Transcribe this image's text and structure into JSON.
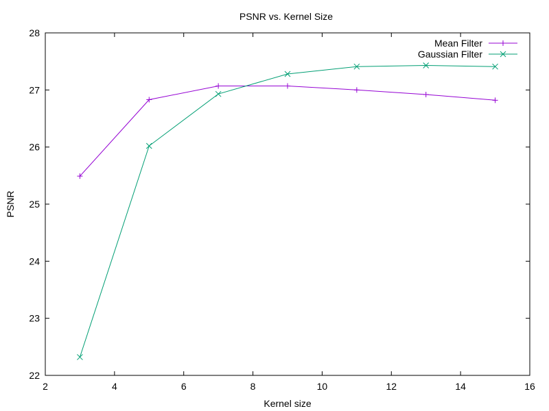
{
  "chart_data": {
    "type": "line",
    "title": "PSNR vs. Kernel Size",
    "xlabel": "Kernel size",
    "ylabel": "PSNR",
    "xlim": [
      2,
      16
    ],
    "ylim": [
      22,
      28
    ],
    "xticks": [
      "2",
      "4",
      "6",
      "8",
      "10",
      "12",
      "14",
      "16"
    ],
    "yticks": [
      "22",
      "23",
      "24",
      "25",
      "26",
      "27",
      "28"
    ],
    "grid": false,
    "legend_position": "top-right",
    "series": [
      {
        "name": "Mean Filter",
        "color": "#9400d3",
        "marker": "plus",
        "x": [
          3,
          5,
          7,
          9,
          11,
          13,
          15
        ],
        "y": [
          25.49,
          26.83,
          27.07,
          27.07,
          27.0,
          26.92,
          26.82
        ]
      },
      {
        "name": "Gaussian Filter",
        "color": "#009e73",
        "marker": "cross",
        "x": [
          3,
          5,
          7,
          9,
          11,
          13,
          15
        ],
        "y": [
          22.32,
          26.02,
          26.93,
          27.28,
          27.41,
          27.43,
          27.41
        ]
      }
    ]
  }
}
